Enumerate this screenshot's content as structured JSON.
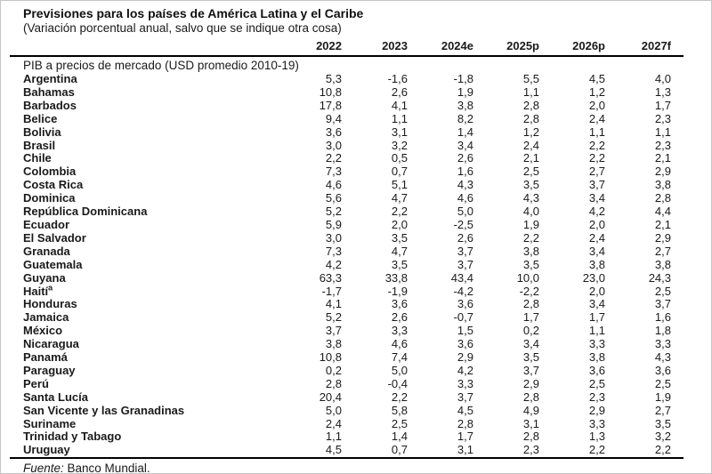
{
  "page": {
    "title": "Previsiones para los países de América Latina y el Caribe",
    "subtitle": "(Variación porcentual anual, salvo que se indique otra cosa)",
    "source_label": "Fuente:",
    "source_text": " Banco Mundial."
  },
  "chart_data": {
    "type": "table",
    "title": "Previsiones para los países de América Latina y el Caribe",
    "subtitle": "(Variación porcentual anual, salvo que se indique otra cosa)",
    "columns": [
      "2022",
      "2023",
      "2024e",
      "2025p",
      "2026p",
      "2027f"
    ],
    "section": "PIB a precios de mercado (USD promedio 2010-19)",
    "decimal_separator": ",",
    "rows": [
      {
        "name": "Argentina",
        "sup": "",
        "values": [
          "5,3",
          "-1,6",
          "-1,8",
          "5,5",
          "4,5",
          "4,0"
        ]
      },
      {
        "name": "Bahamas",
        "sup": "",
        "values": [
          "10,8",
          "2,6",
          "1,9",
          "1,1",
          "1,2",
          "1,3"
        ]
      },
      {
        "name": "Barbados",
        "sup": "",
        "values": [
          "17,8",
          "4,1",
          "3,8",
          "2,8",
          "2,0",
          "1,7"
        ]
      },
      {
        "name": "Belice",
        "sup": "",
        "values": [
          "9,4",
          "1,1",
          "8,2",
          "2,8",
          "2,4",
          "2,3"
        ]
      },
      {
        "name": "Bolivia",
        "sup": "",
        "values": [
          "3,6",
          "3,1",
          "1,4",
          "1,2",
          "1,1",
          "1,1"
        ]
      },
      {
        "name": "Brasil",
        "sup": "",
        "values": [
          "3,0",
          "3,2",
          "3,4",
          "2,4",
          "2,2",
          "2,3"
        ]
      },
      {
        "name": "Chile",
        "sup": "",
        "values": [
          "2,2",
          "0,5",
          "2,6",
          "2,1",
          "2,2",
          "2,1"
        ]
      },
      {
        "name": "Colombia",
        "sup": "",
        "values": [
          "7,3",
          "0,7",
          "1,6",
          "2,5",
          "2,7",
          "2,9"
        ]
      },
      {
        "name": "Costa Rica",
        "sup": "",
        "values": [
          "4,6",
          "5,1",
          "4,3",
          "3,5",
          "3,7",
          "3,8"
        ]
      },
      {
        "name": "Dominica",
        "sup": "",
        "values": [
          "5,6",
          "4,7",
          "4,6",
          "4,3",
          "3,4",
          "2,8"
        ]
      },
      {
        "name": "República Dominicana",
        "sup": "",
        "values": [
          "5,2",
          "2,2",
          "5,0",
          "4,0",
          "4,2",
          "4,4"
        ]
      },
      {
        "name": "Ecuador",
        "sup": "",
        "values": [
          "5,9",
          "2,0",
          "-2,5",
          "1,9",
          "2,0",
          "2,1"
        ]
      },
      {
        "name": "El Salvador",
        "sup": "",
        "values": [
          "3,0",
          "3,5",
          "2,6",
          "2,2",
          "2,4",
          "2,9"
        ]
      },
      {
        "name": "Granada",
        "sup": "",
        "values": [
          "7,3",
          "4,7",
          "3,7",
          "3,8",
          "3,4",
          "2,7"
        ]
      },
      {
        "name": "Guatemala",
        "sup": "",
        "values": [
          "4,2",
          "3,5",
          "3,7",
          "3,5",
          "3,8",
          "3,8"
        ]
      },
      {
        "name": "Guyana",
        "sup": "",
        "values": [
          "63,3",
          "33,8",
          "43,4",
          "10,0",
          "23,0",
          "24,3"
        ]
      },
      {
        "name": "Haití",
        "sup": "a",
        "values": [
          "-1,7",
          "-1,9",
          "-4,2",
          "-2,2",
          "2,0",
          "2,5"
        ]
      },
      {
        "name": "Honduras",
        "sup": "",
        "values": [
          "4,1",
          "3,6",
          "3,6",
          "2,8",
          "3,4",
          "3,7"
        ]
      },
      {
        "name": "Jamaica",
        "sup": "",
        "values": [
          "5,2",
          "2,6",
          "-0,7",
          "1,7",
          "1,7",
          "1,6"
        ]
      },
      {
        "name": "México",
        "sup": "",
        "values": [
          "3,7",
          "3,3",
          "1,5",
          "0,2",
          "1,1",
          "1,8"
        ]
      },
      {
        "name": "Nicaragua",
        "sup": "",
        "values": [
          "3,8",
          "4,6",
          "3,6",
          "3,4",
          "3,3",
          "3,3"
        ]
      },
      {
        "name": "Panamá",
        "sup": "",
        "values": [
          "10,8",
          "7,4",
          "2,9",
          "3,5",
          "3,8",
          "4,3"
        ]
      },
      {
        "name": "Paraguay",
        "sup": "",
        "values": [
          "0,2",
          "5,0",
          "4,2",
          "3,7",
          "3,6",
          "3,6"
        ]
      },
      {
        "name": "Perú",
        "sup": "",
        "values": [
          "2,8",
          "-0,4",
          "3,3",
          "2,9",
          "2,5",
          "2,5"
        ]
      },
      {
        "name": "Santa Lucía",
        "sup": "",
        "values": [
          "20,4",
          "2,2",
          "3,7",
          "2,8",
          "2,3",
          "1,9"
        ]
      },
      {
        "name": "San Vicente y las Granadinas",
        "sup": "",
        "values": [
          "5,0",
          "5,8",
          "4,5",
          "4,9",
          "2,9",
          "2,7"
        ]
      },
      {
        "name": "Suriname",
        "sup": "",
        "values": [
          "2,4",
          "2,5",
          "2,8",
          "3,1",
          "3,3",
          "3,5"
        ]
      },
      {
        "name": "Trinidad y Tabago",
        "sup": "",
        "values": [
          "1,1",
          "1,4",
          "1,7",
          "2,8",
          "1,3",
          "3,2"
        ]
      },
      {
        "name": "Uruguay",
        "sup": "",
        "values": [
          "4,5",
          "0,7",
          "3,1",
          "2,3",
          "2,2",
          "2,2"
        ]
      }
    ],
    "source": "Fuente: Banco Mundial."
  }
}
